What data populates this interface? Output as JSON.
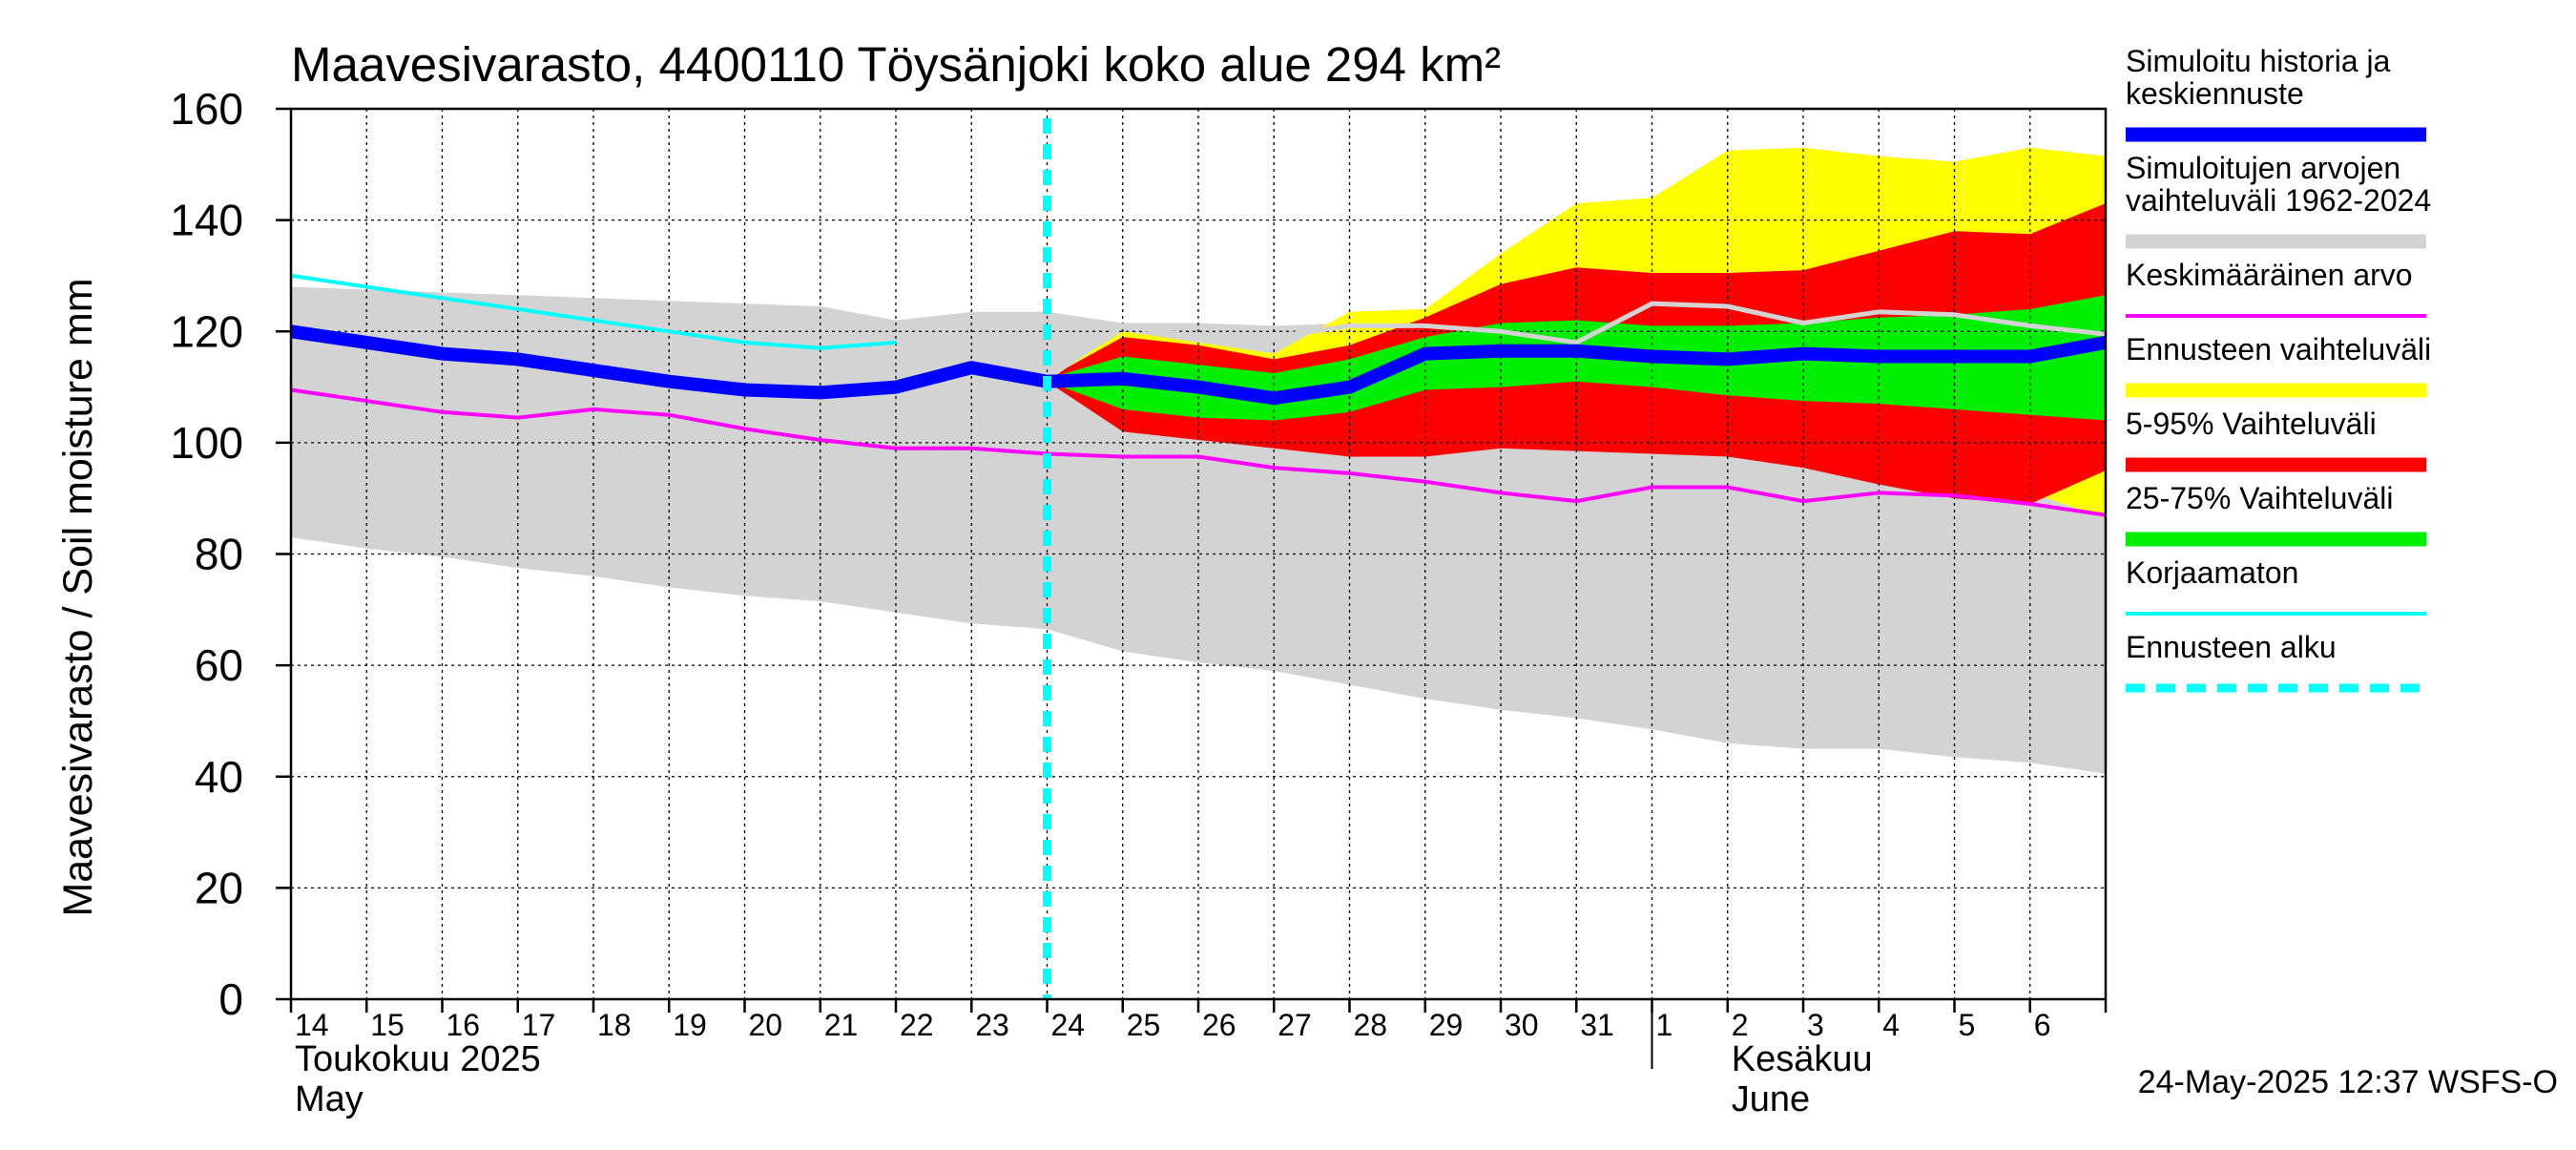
{
  "chart_data": {
    "type": "area",
    "title": "Maavesivarasto, 4400110 Töysänjoki koko alue 294 km²",
    "ylabel": "Maavesivarasto / Soil moisture   mm",
    "ylim": [
      0,
      160
    ],
    "yticks": [
      0,
      20,
      40,
      60,
      80,
      100,
      120,
      140,
      160
    ],
    "grid": true,
    "x_range": [
      0,
      24
    ],
    "day_labels": [
      "14",
      "15",
      "16",
      "17",
      "18",
      "19",
      "20",
      "21",
      "22",
      "23",
      "24",
      "25",
      "26",
      "27",
      "28",
      "29",
      "30",
      "31",
      "1",
      "2",
      "3",
      "4",
      "5",
      "6"
    ],
    "month_labels": [
      {
        "x": 0,
        "line1": "Toukokuu  2025",
        "line2": "May"
      },
      {
        "x": 19,
        "line1": "Kesäkuu",
        "line2": "June"
      }
    ],
    "month_divider_x": 18,
    "forecast_start_x": 10,
    "footer": "24-May-2025 12:37 WSFS-O",
    "legend_position": "right",
    "legend": [
      {
        "label": "Simuloitu historia ja\nkeskiennuste",
        "color": "#0000ff",
        "style": "thick"
      },
      {
        "label": "Simuloitujen arvojen\nvaihteluväli 1962-2024",
        "color": "#d3d3d3",
        "style": "thick"
      },
      {
        "label": "Keskimääräinen arvo",
        "color": "#ff00ff",
        "style": "thin"
      },
      {
        "label": "Ennusteen vaihteluväli",
        "color": "#ffff00",
        "style": "thick"
      },
      {
        "label": "5-95% Vaihteluväli",
        "color": "#ff0000",
        "style": "thick"
      },
      {
        "label": "25-75% Vaihteluväli",
        "color": "#00ee00",
        "style": "thick"
      },
      {
        "label": "Korjaamaton",
        "color": "#00ffff",
        "style": "thin"
      },
      {
        "label": "Ennusteen alku",
        "color": "#00ffff",
        "style": "dashed"
      }
    ],
    "series": {
      "hist_range": {
        "x": [
          0,
          1,
          2,
          3,
          4,
          5,
          6,
          7,
          8,
          9,
          10,
          11,
          12,
          13,
          14,
          15,
          16,
          17,
          18,
          19,
          20,
          21,
          22,
          23,
          24
        ],
        "upper": [
          128,
          127.5,
          127,
          126.5,
          126,
          125.5,
          125,
          124.5,
          122,
          123.5,
          123.5,
          121.5,
          121.5,
          121,
          121.5,
          121,
          121,
          120.5,
          121,
          121.5,
          121,
          122,
          122,
          122,
          122
        ],
        "lower": [
          83,
          81,
          79.5,
          77.5,
          76,
          74,
          72.5,
          71.5,
          69.5,
          67.5,
          66.5,
          62.5,
          60.5,
          59,
          56.5,
          54,
          52,
          50.5,
          48.5,
          46,
          45,
          45,
          43.5,
          42.5,
          40.5
        ]
      },
      "forecast_range": {
        "x": [
          10,
          11,
          12,
          13,
          14,
          15,
          16,
          17,
          18,
          19,
          20,
          21,
          22,
          23,
          24
        ],
        "upper": [
          111.5,
          120,
          118,
          116,
          123.5,
          124,
          134,
          143,
          144,
          152.5,
          153,
          151.5,
          150.5,
          153,
          151.5
        ],
        "lower": [
          111,
          102.5,
          101,
          99.5,
          98.5,
          98,
          100.5,
          100,
          99.5,
          98.5,
          97,
          95,
          93,
          91,
          86.5
        ]
      },
      "p5_95": {
        "x": [
          10,
          11,
          12,
          13,
          14,
          15,
          16,
          17,
          18,
          19,
          20,
          21,
          22,
          23,
          24
        ],
        "upper": [
          111.5,
          119,
          117.5,
          115,
          117.5,
          122.5,
          128.5,
          131.5,
          130.5,
          130.5,
          131,
          134.5,
          138,
          137.5,
          143
        ],
        "lower": [
          111,
          102,
          100.5,
          99,
          97.5,
          97.5,
          99,
          98.5,
          98,
          97.5,
          95.5,
          92.5,
          90,
          89,
          95
        ]
      },
      "p25_75": {
        "x": [
          10,
          11,
          12,
          13,
          14,
          15,
          16,
          17,
          18,
          19,
          20,
          21,
          22,
          23,
          24
        ],
        "upper": [
          111.5,
          115.5,
          114,
          112.5,
          115,
          119,
          121.5,
          122,
          121,
          121,
          121.5,
          122.5,
          123,
          124,
          126.5
        ],
        "lower": [
          111,
          106,
          104.5,
          104,
          105.5,
          109.5,
          110,
          111,
          110,
          108.5,
          107.5,
          107,
          106,
          105,
          104
        ]
      },
      "median": {
        "x": [
          0,
          1,
          2,
          3,
          4,
          5,
          6,
          7,
          8,
          9,
          10,
          11,
          12,
          13,
          14,
          15,
          16,
          17,
          18,
          19,
          20,
          21,
          22,
          23,
          24
        ],
        "y": [
          120,
          118,
          116,
          115,
          113,
          111,
          109.5,
          109,
          110,
          113.5,
          111,
          111.5,
          110,
          108,
          110,
          116,
          116.5,
          116.5,
          115.5,
          115,
          116,
          115.5,
          115.5,
          115.5,
          118
        ]
      },
      "sim_mean": {
        "x": [
          10,
          11,
          12,
          13,
          14,
          15,
          16,
          17,
          18,
          19,
          20,
          21,
          22,
          23,
          24
        ],
        "y": [
          111.5,
          121,
          119,
          119,
          121,
          121,
          120,
          118,
          125,
          124.5,
          121.5,
          123.5,
          123,
          121,
          119.5
        ]
      },
      "average": {
        "x": [
          0,
          1,
          2,
          3,
          4,
          5,
          6,
          7,
          8,
          9,
          10,
          11,
          12,
          13,
          14,
          15,
          16,
          17,
          18,
          19,
          20,
          21,
          22,
          23,
          24
        ],
        "y": [
          109.5,
          107.5,
          105.5,
          104.5,
          106,
          105,
          102.5,
          100.5,
          99,
          99,
          98,
          97.5,
          97.5,
          95.5,
          94.5,
          93,
          91,
          89.5,
          92,
          92,
          89.5,
          91,
          90.5,
          89,
          87
        ]
      },
      "uncorrected": {
        "x": [
          0,
          1,
          2,
          3,
          4,
          5,
          6,
          7,
          8
        ],
        "y": [
          130,
          128,
          126,
          124,
          122,
          120,
          118,
          117,
          118
        ]
      }
    }
  }
}
